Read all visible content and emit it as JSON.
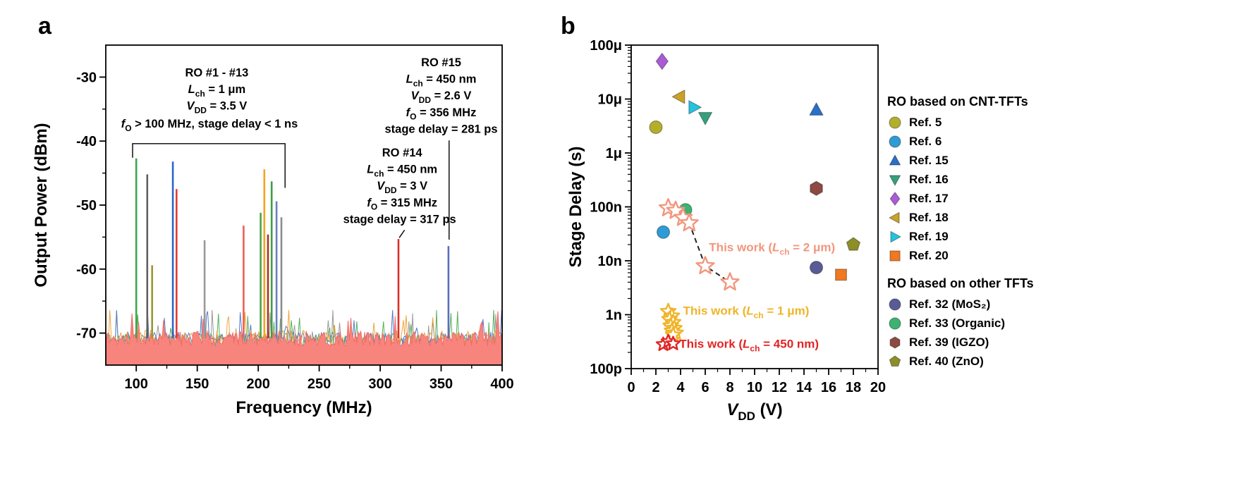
{
  "panels": {
    "a": {
      "label": "a"
    },
    "b": {
      "label": "b"
    }
  },
  "chart_data": [
    {
      "panel": "a",
      "type": "line",
      "title": "",
      "xlabel": "Frequency (MHz)",
      "ylabel": "Output Power (dBm)",
      "xlim": [
        75,
        400
      ],
      "ylim": [
        -75,
        -25
      ],
      "xticks": [
        100,
        150,
        200,
        250,
        300,
        350,
        400
      ],
      "yticks": [
        -30,
        -40,
        -50,
        -60,
        -70
      ],
      "noise_floor_dbm": -71,
      "noise_colors": [
        "#9a9a9a",
        "#55b05a",
        "#5b79c9",
        "#f0a43c"
      ],
      "noise_fill_color": "#f8847e",
      "peaks": [
        {
          "ro": "RO #1",
          "freq_mhz": 100,
          "power_dbm": -42.7,
          "color": "#3da84a"
        },
        {
          "ro": "RO #2",
          "freq_mhz": 109,
          "power_dbm": -45.2,
          "color": "#5f5f5f"
        },
        {
          "ro": "RO #3",
          "freq_mhz": 113,
          "power_dbm": -59.4,
          "color": "#99972f"
        },
        {
          "ro": "RO #4",
          "freq_mhz": 130,
          "power_dbm": -43.2,
          "color": "#2e66cc"
        },
        {
          "ro": "RO #5",
          "freq_mhz": 133,
          "power_dbm": -47.5,
          "color": "#e23d32"
        },
        {
          "ro": "RO #6",
          "freq_mhz": 156,
          "power_dbm": -55.5,
          "color": "#999999"
        },
        {
          "ro": "RO #7",
          "freq_mhz": 188,
          "power_dbm": -53.2,
          "color": "#ef5f55"
        },
        {
          "ro": "RO #8",
          "freq_mhz": 202,
          "power_dbm": -51.2,
          "color": "#46a54b"
        },
        {
          "ro": "RO #9",
          "freq_mhz": 205,
          "power_dbm": -44.4,
          "color": "#f3a61f"
        },
        {
          "ro": "RO #10",
          "freq_mhz": 208,
          "power_dbm": -54.6,
          "color": "#a93226"
        },
        {
          "ro": "RO #11",
          "freq_mhz": 211,
          "power_dbm": -46.3,
          "color": "#3f9e46"
        },
        {
          "ro": "RO #12",
          "freq_mhz": 215,
          "power_dbm": -49.4,
          "color": "#6b7fc2"
        },
        {
          "ro": "RO #13",
          "freq_mhz": 219,
          "power_dbm": -51.9,
          "color": "#8b8b8b"
        },
        {
          "ro": "RO #14",
          "freq_mhz": 315,
          "power_dbm": -55.3,
          "color": "#d93025"
        },
        {
          "ro": "RO #15",
          "freq_mhz": 356,
          "power_dbm": -56.4,
          "color": "#5b6dbe"
        }
      ],
      "annotations": [
        {
          "name": "ro-1-13-note",
          "lines": [
            {
              "text": "RO #1 - #13",
              "x": 166,
              "y": -29.9
            },
            {
              "text": "L_{ch} = 1 μm",
              "x": 166,
              "y": -32.5
            },
            {
              "text": "V_{DD} = 3.5 V",
              "x": 166,
              "y": -35.1
            },
            {
              "text": "f_{O} > 100 MHz, stage delay < 1 ns",
              "x": 160,
              "y": -37.9
            }
          ]
        },
        {
          "name": "ro-14-note",
          "lines": [
            {
              "text": "RO #14",
              "x": 318,
              "y": -42.4
            },
            {
              "text": "L_{ch} = 450 nm",
              "x": 318,
              "y": -45.0
            },
            {
              "text": "V_{DD} = 3 V",
              "x": 318,
              "y": -47.6
            },
            {
              "text": "f_{O} = 315 MHz",
              "x": 318,
              "y": -50.2
            },
            {
              "text": "stage delay = 317 ps",
              "x": 316,
              "y": -52.8
            }
          ]
        },
        {
          "name": "ro-15-note",
          "lines": [
            {
              "text": "RO #15",
              "x": 350,
              "y": -28.3
            },
            {
              "text": "L_{ch} = 450 nm",
              "x": 350,
              "y": -30.9
            },
            {
              "text": "V_{DD} = 2.6 V",
              "x": 350,
              "y": -33.5
            },
            {
              "text": "f_{O} = 356 MHz",
              "x": 350,
              "y": -36.1
            },
            {
              "text": "stage delay = 281 ps",
              "x": 350,
              "y": -38.7
            }
          ]
        }
      ],
      "connectors": [
        {
          "name": "bracket-ro-1-13",
          "points": [
            [
              97,
              -42.6
            ],
            [
              97,
              -40.4
            ],
            [
              222,
              -40.4
            ],
            [
              222,
              -47.3
            ]
          ]
        },
        {
          "name": "pointer-ro-14",
          "points": [
            [
              320,
              -53.9
            ],
            [
              315.6,
              -55.1
            ]
          ]
        },
        {
          "name": "pointer-ro-15",
          "points": [
            [
              356.5,
              -39.9
            ],
            [
              356.5,
              -55.4
            ]
          ]
        }
      ]
    },
    {
      "panel": "b",
      "type": "scatter",
      "title": "",
      "xlabel": "V_{DD} (V)",
      "ylabel": "Stage Delay (s)",
      "xlim": [
        0,
        20
      ],
      "ylim_log": [
        1e-10,
        0.0001
      ],
      "xticks": [
        0,
        2,
        4,
        6,
        8,
        10,
        12,
        14,
        16,
        18,
        20
      ],
      "ytick_labels": [
        "100p",
        "1n",
        "10n",
        "100n",
        "1μ",
        "10μ",
        "100μ"
      ],
      "series": [
        {
          "name": "Ref. 5",
          "marker": "circle",
          "color": "#b3af2a",
          "size": 9,
          "points": [
            [
              2,
              3e-06
            ]
          ]
        },
        {
          "name": "Ref. 6",
          "marker": "circle",
          "color": "#2e9bd6",
          "size": 9,
          "points": [
            [
              2.6,
              3.4e-08
            ]
          ]
        },
        {
          "name": "Ref. 15",
          "marker": "triangle-up",
          "color": "#2a6fc9",
          "size": 10,
          "points": [
            [
              15,
              6.3e-06
            ]
          ]
        },
        {
          "name": "Ref. 16",
          "marker": "triangle-down",
          "color": "#35a17c",
          "size": 10,
          "points": [
            [
              6,
              4.5e-06
            ]
          ]
        },
        {
          "name": "Ref. 17",
          "marker": "diamond",
          "color": "#a95cd6",
          "size": 10,
          "points": [
            [
              2.5,
              5e-05
            ]
          ]
        },
        {
          "name": "Ref. 18",
          "marker": "triangle-left",
          "color": "#c9a227",
          "size": 10,
          "points": [
            [
              3.9,
              1.1e-05
            ]
          ]
        },
        {
          "name": "Ref. 19",
          "marker": "triangle-right",
          "color": "#25c3e0",
          "size": 10,
          "points": [
            [
              5.1,
              7e-06
            ]
          ]
        },
        {
          "name": "Ref. 20",
          "marker": "square",
          "color": "#f07820",
          "size": 9,
          "points": [
            [
              17,
              5.5e-09
            ]
          ]
        },
        {
          "name": "Ref. 32 (MoS₂)",
          "marker": "circle",
          "color": "#5a5a96",
          "size": 9,
          "points": [
            [
              15,
              7.5e-09
            ]
          ]
        },
        {
          "name": "Ref. 33 (Organic)",
          "marker": "circle",
          "color": "#3cb371",
          "size": 9,
          "points": [
            [
              4.4,
              8.8e-08
            ]
          ]
        },
        {
          "name": "Ref. 39 (IGZO)",
          "marker": "hexagon",
          "color": "#8c4a42",
          "size": 10,
          "points": [
            [
              15,
              2.2e-07
            ]
          ]
        },
        {
          "name": "Ref. 40 (ZnO)",
          "marker": "pentagon",
          "color": "#8e8e28",
          "size": 10,
          "points": [
            [
              18,
              2e-08
            ]
          ]
        },
        {
          "name": "This work (Lch = 2 um)",
          "marker": "star",
          "open": true,
          "color": "#f2967e",
          "size": 13,
          "line": {
            "color": "#222222",
            "dash": "7,5"
          },
          "points": [
            [
              3,
              9.5e-08
            ],
            [
              3.6,
              8.5e-08
            ],
            [
              4.2,
              6.3e-08
            ],
            [
              4.7,
              5e-08
            ],
            [
              6,
              8e-09
            ],
            [
              8,
              4e-09
            ]
          ]
        },
        {
          "name": "This work (Lch = 1 um)",
          "marker": "star",
          "open": true,
          "color": "#f0b429",
          "size": 11,
          "points": [
            [
              3.0,
              1.15e-09
            ],
            [
              3.3,
              9.5e-10
            ],
            [
              3.1,
              8.2e-10
            ],
            [
              3.4,
              7.2e-10
            ],
            [
              3.2,
              6.2e-10
            ],
            [
              3.5,
              5.6e-10
            ],
            [
              3.3,
              5e-10
            ],
            [
              3.6,
              4.6e-10
            ],
            [
              3.4,
              4.2e-10
            ]
          ]
        },
        {
          "name": "This work (Lch = 450 nm)",
          "marker": "star",
          "open": true,
          "color": "#e32424",
          "size": 10,
          "points": [
            [
              2.6,
              2.81e-10
            ],
            [
              3.0,
              3.17e-10
            ],
            [
              3.4,
              2.9e-10
            ]
          ]
        }
      ],
      "labels": [
        {
          "text": "This work (L_{ch} = 2 μm)",
          "color": "#f2967e",
          "x": 6.3,
          "y": 1.8e-08
        },
        {
          "text": "This work (L_{ch} = 1 μm)",
          "color": "#f0b429",
          "x": 4.2,
          "y": 1.2e-09
        },
        {
          "text": "This work (L_{ch} = 450 nm)",
          "color": "#e32424",
          "x": 3.9,
          "y": 2.9e-10
        }
      ]
    }
  ],
  "legend": {
    "group1_title": "RO based on CNT-TFTs",
    "group1": [
      {
        "label": "Ref. 5",
        "marker": "circle",
        "color": "#b3af2a"
      },
      {
        "label": "Ref. 6",
        "marker": "circle",
        "color": "#2e9bd6"
      },
      {
        "label": "Ref. 15",
        "marker": "triangle-up",
        "color": "#2a6fc9"
      },
      {
        "label": "Ref. 16",
        "marker": "triangle-down",
        "color": "#35a17c"
      },
      {
        "label": "Ref. 17",
        "marker": "diamond",
        "color": "#a95cd6"
      },
      {
        "label": "Ref. 18",
        "marker": "triangle-left",
        "color": "#c9a227"
      },
      {
        "label": "Ref. 19",
        "marker": "triangle-right",
        "color": "#25c3e0"
      },
      {
        "label": "Ref. 20",
        "marker": "square",
        "color": "#f07820"
      }
    ],
    "group2_title": "RO based on other TFTs",
    "group2": [
      {
        "label": "Ref. 32 (MoS₂)",
        "marker": "circle",
        "color": "#5a5a96"
      },
      {
        "label": "Ref. 33 (Organic)",
        "marker": "circle",
        "color": "#3cb371"
      },
      {
        "label": "Ref. 39 (IGZO)",
        "marker": "hexagon",
        "color": "#8c4a42"
      },
      {
        "label": "Ref. 40 (ZnO)",
        "marker": "pentagon",
        "color": "#8e8e28"
      }
    ]
  }
}
